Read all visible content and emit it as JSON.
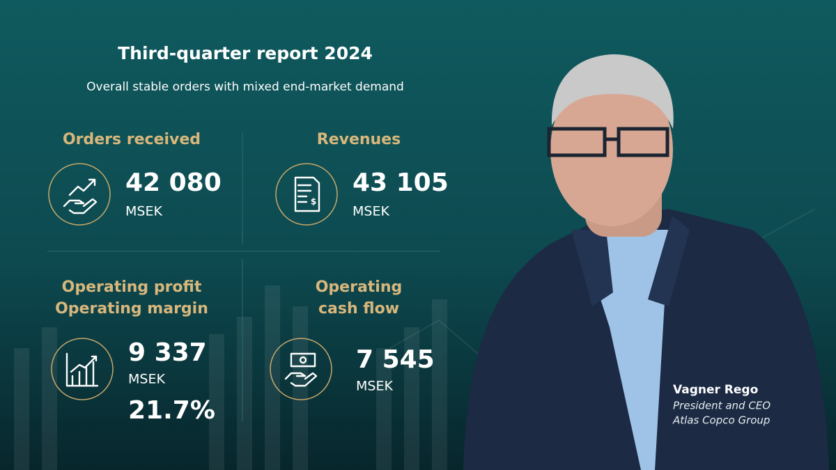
{
  "header": {
    "title": "Third-quarter report 2024",
    "subtitle": "Overall stable orders with mixed end-market demand"
  },
  "metrics": [
    {
      "label": [
        "Orders received"
      ],
      "value": "42 080",
      "unit": "MSEK"
    },
    {
      "label": [
        "Revenues"
      ],
      "value": "43 105",
      "unit": "MSEK"
    },
    {
      "label": [
        "Operating profit",
        "Operating margin"
      ],
      "value": "9 337",
      "unit": "MSEK",
      "extra": "21.7%"
    },
    {
      "label": [
        "Operating",
        "cash flow"
      ],
      "value": "7 545",
      "unit": "MSEK"
    }
  ],
  "person": {
    "name": "Vagner Rego",
    "role": "President and CEO",
    "company": "Atlas Copco Group"
  }
}
